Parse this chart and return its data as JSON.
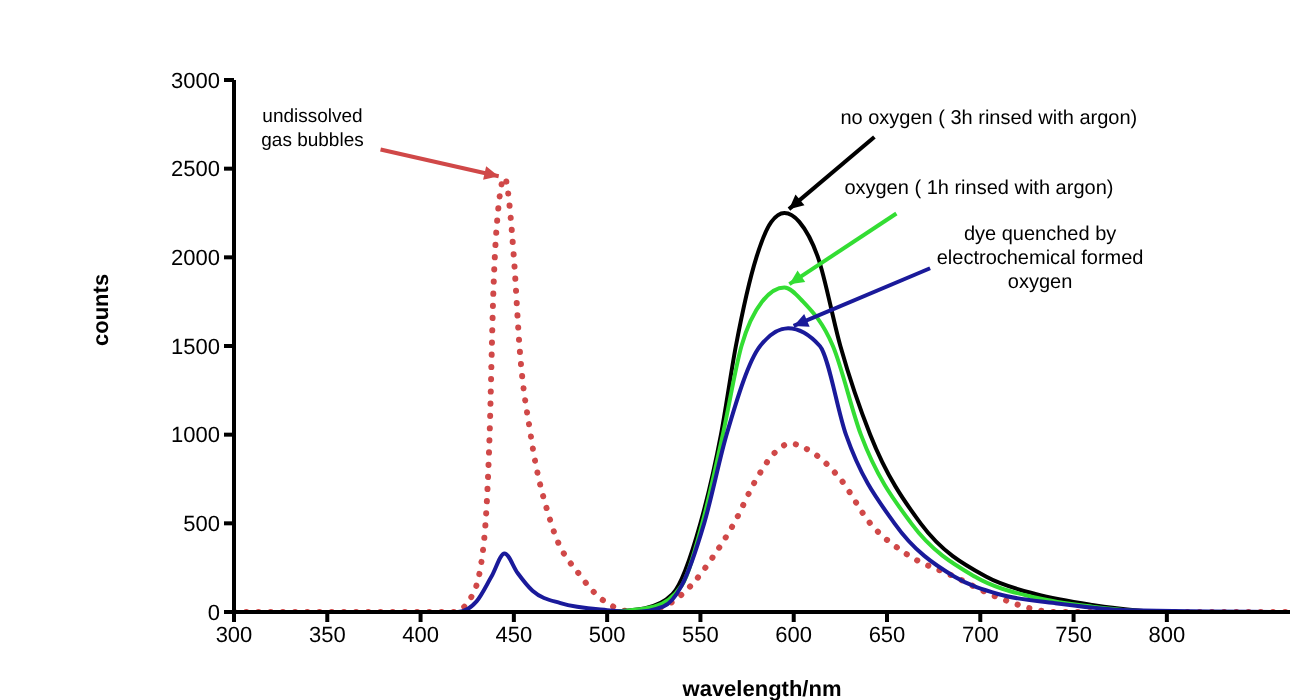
{
  "chart_data": {
    "type": "line",
    "xlabel": "wavelength/nm",
    "ylabel": "counts",
    "xlim": [
      300,
      866
    ],
    "xticks": [
      300,
      350,
      400,
      450,
      500,
      550,
      600,
      650,
      700,
      750,
      800
    ],
    "ylim": [
      0,
      3000
    ],
    "yticks": [
      0,
      500,
      1000,
      1500,
      2000,
      2500,
      3000
    ],
    "grid": false,
    "marker": "none",
    "series": [
      {
        "color": "#d04848",
        "line_style": "dotted",
        "x": [
          300,
          418,
          428,
          434,
          437,
          439,
          441,
          445,
          450,
          453,
          459,
          470,
          486,
          500,
          515,
          530,
          545,
          556,
          568,
          580,
          590,
          598,
          610,
          625,
          641,
          660,
          686,
          710,
          740,
          866
        ],
        "values": [
          0,
          0,
          100,
          400,
          1000,
          1800,
          2200,
          2450,
          2000,
          1500,
          1000,
          500,
          200,
          50,
          0,
          30,
          150,
          300,
          500,
          750,
          900,
          950,
          900,
          750,
          500,
          330,
          200,
          80,
          0,
          0
        ]
      },
      {
        "color": "#000000",
        "line_style": "solid",
        "x": [
          500,
          520,
          535,
          550,
          561,
          569,
          580,
          588,
          595,
          603,
          613,
          625,
          641,
          668,
          703,
          730,
          760,
          800,
          866
        ],
        "values": [
          0,
          20,
          100,
          500,
          1000,
          1500,
          2000,
          2200,
          2250,
          2200,
          2000,
          1500,
          1000,
          500,
          200,
          100,
          40,
          0,
          0
        ]
      },
      {
        "color": "#33dd33",
        "line_style": "solid",
        "x": [
          500,
          525,
          540,
          551,
          562,
          572,
          583,
          595,
          605,
          621,
          636,
          663,
          697,
          730,
          760,
          800,
          866
        ],
        "values": [
          0,
          30,
          150,
          500,
          1000,
          1500,
          1750,
          1830,
          1750,
          1500,
          1000,
          500,
          200,
          80,
          30,
          0,
          0
        ]
      },
      {
        "color": "#1a1a9a",
        "line_style": "solid",
        "x": [
          300,
          420,
          430,
          438,
          445,
          452,
          460,
          475,
          500,
          515,
          530,
          540,
          552,
          564,
          582,
          597,
          614,
          628,
          654,
          686,
          710,
          740,
          780,
          866
        ],
        "values": [
          0,
          0,
          60,
          200,
          330,
          220,
          120,
          50,
          10,
          0,
          30,
          150,
          500,
          1000,
          1500,
          1600,
          1500,
          1000,
          500,
          200,
          100,
          50,
          10,
          0
        ]
      }
    ],
    "annotations": [
      {
        "text": "undissolved gas bubbles",
        "x": 445,
        "y": 2450
      },
      {
        "text": "no oxygen ( 3h rinsed with argon)",
        "x": 595,
        "y": 2250
      },
      {
        "text": "oxygen ( 1h rinsed with argon)",
        "x": 595,
        "y": 1830
      },
      {
        "text": "dye quenched by electrochemical formed oxygen",
        "x": 597,
        "y": 1600
      }
    ]
  }
}
